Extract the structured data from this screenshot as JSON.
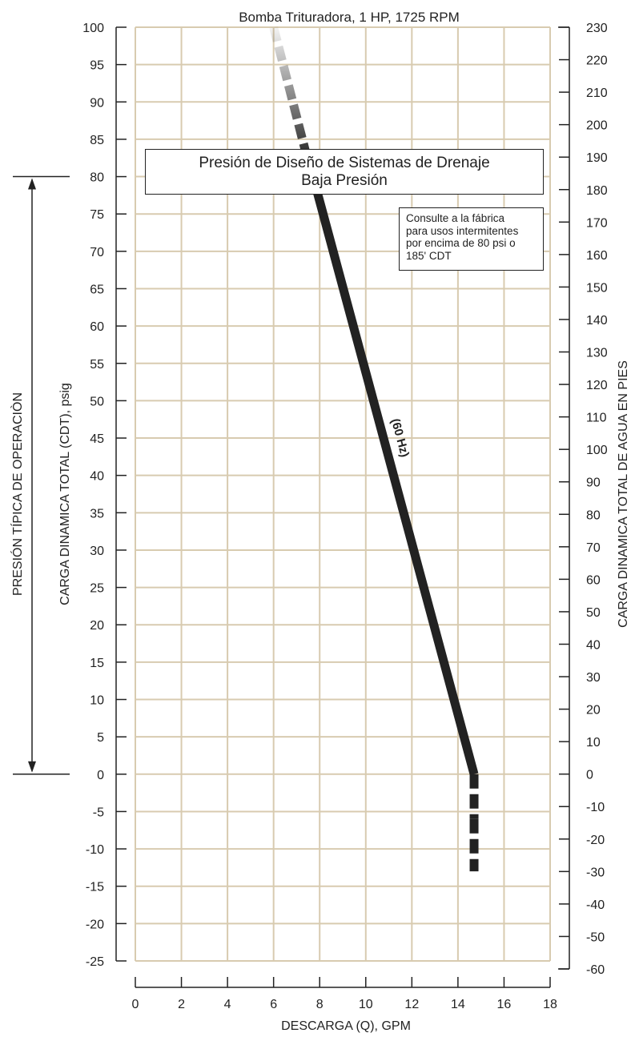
{
  "chart_data": {
    "type": "line",
    "title": "Bomba Trituradora, 1 HP, 1725 RPM",
    "xlabel": "DESCARGA (Q), GPM",
    "ylabel_left": "CARGA DINAMICA TOTAL (CDT), psig",
    "ylabel_right": "CARGA DINAMICA TOTAL DE AGUA EN PIES",
    "operating_range_label": "PRESIÓN TÍPICA DE OPERACIÒN",
    "operating_range": [
      0,
      80
    ],
    "xlim": [
      0,
      18
    ],
    "ylim": [
      -25,
      100
    ],
    "ylim_right": [
      -60,
      230
    ],
    "x_ticks": [
      0,
      2,
      4,
      6,
      8,
      10,
      12,
      14,
      16,
      18
    ],
    "y_ticks": [
      100,
      95,
      90,
      85,
      80,
      75,
      70,
      65,
      60,
      55,
      50,
      45,
      40,
      35,
      30,
      25,
      20,
      15,
      10,
      5,
      0,
      -5,
      -10,
      -15,
      -20,
      -25
    ],
    "y_right_ticks": [
      230,
      220,
      210,
      200,
      190,
      180,
      170,
      160,
      150,
      140,
      130,
      120,
      110,
      100,
      90,
      80,
      70,
      60,
      50,
      40,
      30,
      20,
      10,
      0,
      -10,
      -20,
      -30,
      -40,
      -50,
      -60
    ],
    "grid": true,
    "grid_color": "#d8cbb0",
    "series": [
      {
        "name": "(60 Hz)",
        "color": "#222222",
        "points": [
          {
            "x": 6.0,
            "y": 100,
            "style": "dashed"
          },
          {
            "x": 7.5,
            "y": 82,
            "style": "dashed"
          },
          {
            "x": 7.8,
            "y": 79,
            "style": "solid"
          },
          {
            "x": 14.7,
            "y": 0,
            "style": "solid"
          },
          {
            "x": 14.7,
            "y": -6,
            "style": "dashed"
          },
          {
            "x": 14.7,
            "y": -13,
            "style": "dashed"
          }
        ]
      }
    ],
    "annotations": {
      "design_box": [
        "Presión de Diseño de Sistemas de Drenaje",
        "Baja Presión"
      ],
      "note_box": [
        "Consulte a la fábrica",
        "para usos intermitentes",
        "por encima de 80 psi o",
        "185' CDT"
      ]
    }
  }
}
